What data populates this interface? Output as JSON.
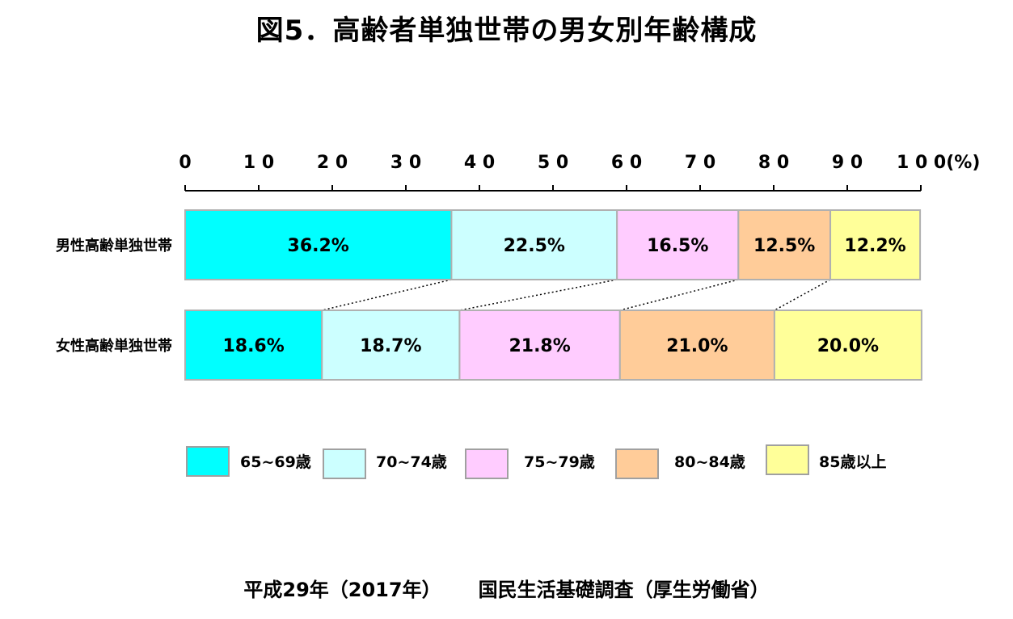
{
  "title": "図5．高齢者単独世帯の男女別年齢構成",
  "footer": {
    "survey_year": "平成29年（2017年）",
    "source": "国民生活基礎調査（厚生労働省）"
  },
  "chart_data": {
    "type": "bar",
    "orientation": "horizontal",
    "stacked": "percent",
    "title": "図5．高齢者単独世帯の男女別年齢構成",
    "x_axis": {
      "position": "top",
      "range": [
        0,
        100
      ],
      "ticks": [
        0,
        10,
        20,
        30,
        40,
        50,
        60,
        70,
        80,
        90,
        100
      ],
      "tick_labels": [
        "0",
        "1 0",
        "2 0",
        "3 0",
        "4 0",
        "5 0",
        "6 0",
        "7 0",
        "8 0",
        "9 0",
        "1 0 0(%)"
      ]
    },
    "categories": [
      "男性高齢単独世帯",
      "女性高齢単独世帯"
    ],
    "series": [
      {
        "name": "65~69歳",
        "values": [
          36.2,
          18.6
        ],
        "labels": [
          "36.2%",
          "18.6%"
        ],
        "color": "#00FFFF"
      },
      {
        "name": "70~74歳",
        "values": [
          22.5,
          18.7
        ],
        "labels": [
          "22.5%",
          "18.7%"
        ],
        "color": "#CCFFFF"
      },
      {
        "name": "75~79歳",
        "values": [
          16.5,
          21.8
        ],
        "labels": [
          "16.5%",
          "21.8%"
        ],
        "color": "#FFCCFF"
      },
      {
        "name": "80~84歳",
        "values": [
          12.5,
          21.0
        ],
        "labels": [
          "12.5%",
          "21.0%"
        ],
        "color": "#FFCC99"
      },
      {
        "name": "85歳以上",
        "values": [
          12.2,
          20.0
        ],
        "labels": [
          "12.2%",
          "20.0%"
        ],
        "color": "#FFFF99"
      }
    ],
    "series_lines": "dotted",
    "legend_position": "bottom",
    "grid": false
  }
}
